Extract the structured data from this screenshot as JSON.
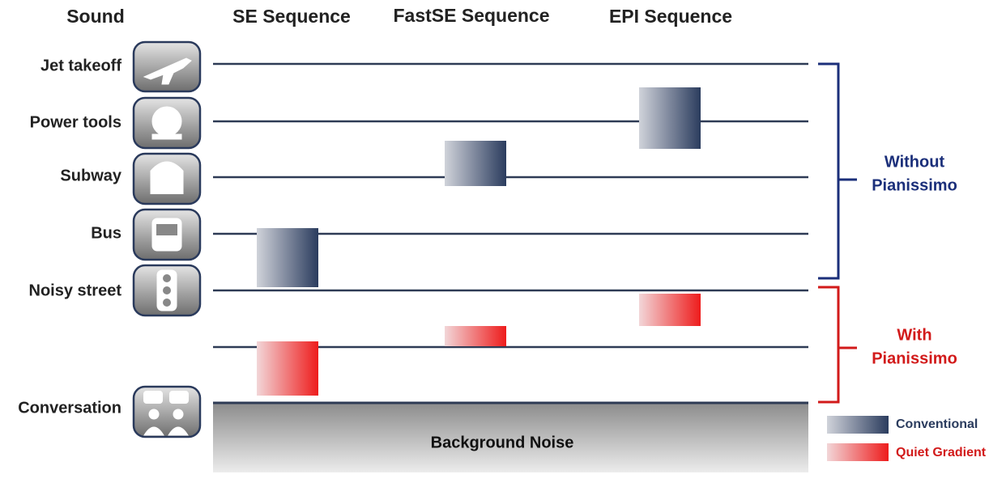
{
  "header": {
    "sound": "Sound",
    "columns": [
      "SE Sequence",
      "FastSE Sequence",
      "EPI Sequence"
    ]
  },
  "rows": [
    "Jet takeoff",
    "Power tools",
    "Subway",
    "Bus",
    "Noisy street",
    "Conversation"
  ],
  "background": "Background Noise",
  "brackets": [
    {
      "lines": [
        "Without",
        "Pianissimo"
      ]
    },
    {
      "lines": [
        "With",
        "Pianissimo"
      ]
    }
  ],
  "legend": [
    "Conventional",
    "Quiet Gradient"
  ]
}
